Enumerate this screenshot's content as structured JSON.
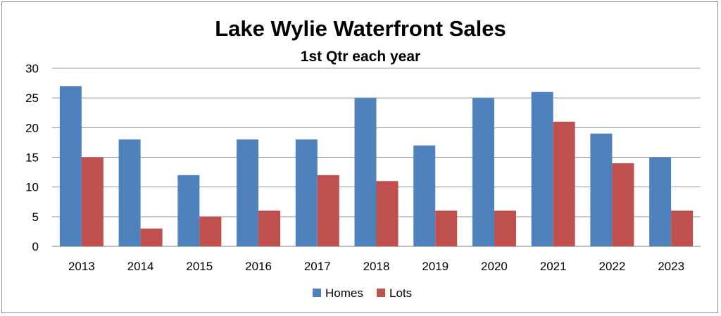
{
  "chart_data": {
    "type": "bar",
    "title": "Lake Wylie Waterfront Sales",
    "subtitle": "1st Qtr each year",
    "categories": [
      "2013",
      "2014",
      "2015",
      "2016",
      "2017",
      "2018",
      "2019",
      "2020",
      "2021",
      "2022",
      "2023"
    ],
    "series": [
      {
        "name": "Homes",
        "color": "#4f81bd",
        "values": [
          27,
          18,
          12,
          18,
          18,
          25,
          17,
          25,
          26,
          19,
          15
        ]
      },
      {
        "name": "Lots",
        "color": "#c0504d",
        "values": [
          15,
          3,
          5,
          6,
          12,
          11,
          6,
          6,
          21,
          14,
          6
        ]
      }
    ],
    "ylim": [
      0,
      30
    ],
    "yticks": [
      0,
      5,
      10,
      15,
      20,
      25,
      30
    ],
    "grid": true,
    "legend": "bottom"
  }
}
